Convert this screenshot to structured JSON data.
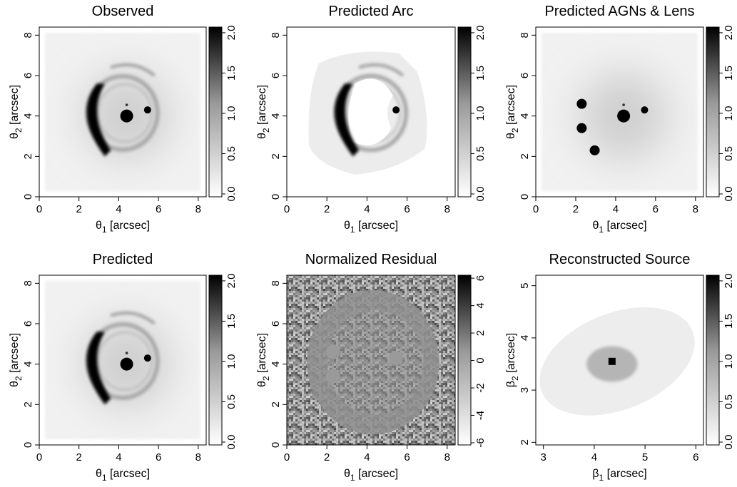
{
  "figure": {
    "colors": {
      "ink": "#000000",
      "background": "#ffffff"
    }
  },
  "chart_data": [
    {
      "type": "heatmap",
      "title": "Observed",
      "xlabel": "θ1 [arcsec]",
      "ylabel": "θ2 [arcsec]",
      "xlim": [
        0,
        8.4
      ],
      "ylim": [
        0,
        8.4
      ],
      "xticks": [
        "0",
        "2",
        "4",
        "6",
        "8"
      ],
      "yticks": [
        "0",
        "2",
        "4",
        "6",
        "8"
      ],
      "colorbar": {
        "range": [
          0,
          2.0
        ],
        "ticks": [
          "0.0",
          "0.5",
          "1.0",
          "1.5",
          "2.0"
        ]
      },
      "scene": "lensed-ring",
      "features": {
        "halo": true,
        "arc": 1.0,
        "ring": 0.45,
        "lens_center": [
          4.4,
          4.0
        ],
        "agns": [
          [
            5.45,
            4.3
          ]
        ],
        "mask": false
      }
    },
    {
      "type": "heatmap",
      "title": "Predicted Arc",
      "xlabel": "θ1 [arcsec]",
      "ylabel": "θ2 [arcsec]",
      "xlim": [
        0,
        8.4
      ],
      "ylim": [
        0,
        8.4
      ],
      "xticks": [
        "0",
        "2",
        "4",
        "6",
        "8"
      ],
      "yticks": [
        "0",
        "2",
        "4",
        "6",
        "8"
      ],
      "colorbar": {
        "range": [
          0,
          2.0
        ],
        "ticks": [
          "0.0",
          "0.5",
          "1.0",
          "1.5",
          "2.0"
        ]
      },
      "scene": "arc-model",
      "features": {
        "halo": false,
        "arc": 1.0,
        "ring": 0.5,
        "lens_center": null,
        "agns": [
          [
            5.45,
            4.3
          ]
        ],
        "mask": true
      }
    },
    {
      "type": "heatmap",
      "title": "Predicted AGNs & Lens",
      "xlabel": "θ1 [arcsec]",
      "ylabel": "θ2 [arcsec]",
      "xlim": [
        0,
        8.4
      ],
      "ylim": [
        0,
        8.4
      ],
      "xticks": [
        "0",
        "2",
        "4",
        "6",
        "8"
      ],
      "yticks": [
        "0",
        "2",
        "4",
        "6",
        "8"
      ],
      "colorbar": {
        "range": [
          0,
          2.0
        ],
        "ticks": [
          "0.0",
          "0.5",
          "1.0",
          "1.5",
          "2.0"
        ]
      },
      "scene": "agn-lens",
      "features": {
        "halo": true,
        "arc": 0,
        "ring": 0,
        "lens_center": [
          4.4,
          4.0
        ],
        "agns": [
          [
            2.3,
            4.6
          ],
          [
            2.3,
            3.4
          ],
          [
            2.95,
            2.3
          ],
          [
            5.45,
            4.3
          ]
        ],
        "mask": false
      }
    },
    {
      "type": "heatmap",
      "title": "Predicted",
      "xlabel": "θ1 [arcsec]",
      "ylabel": "θ2 [arcsec]",
      "xlim": [
        0,
        8.4
      ],
      "ylim": [
        0,
        8.4
      ],
      "xticks": [
        "0",
        "2",
        "4",
        "6",
        "8"
      ],
      "yticks": [
        "0",
        "2",
        "4",
        "6",
        "8"
      ],
      "colorbar": {
        "range": [
          0,
          2.0
        ],
        "ticks": [
          "0.0",
          "0.5",
          "1.0",
          "1.5",
          "2.0"
        ]
      },
      "scene": "lensed-ring",
      "features": {
        "halo": true,
        "arc": 1.0,
        "ring": 0.45,
        "lens_center": [
          4.4,
          4.0
        ],
        "agns": [
          [
            5.45,
            4.3
          ]
        ],
        "mask": false
      }
    },
    {
      "type": "heatmap",
      "title": "Normalized Residual",
      "xlabel": "θ1 [arcsec]",
      "ylabel": "θ2 [arcsec]",
      "xlim": [
        0,
        8.4
      ],
      "ylim": [
        0,
        8.4
      ],
      "xticks": [
        "0",
        "2",
        "4",
        "6",
        "8"
      ],
      "yticks": [
        "0",
        "2",
        "4",
        "6",
        "8"
      ],
      "colorbar": {
        "range": [
          -6,
          6
        ],
        "ticks": [
          "-6",
          "-4",
          "-2",
          "0",
          "2",
          "4",
          "6"
        ]
      },
      "scene": "residual",
      "features": {
        "masked_discs": [
          [
            2.3,
            4.6
          ],
          [
            2.3,
            3.4
          ],
          [
            5.45,
            4.3
          ]
        ]
      }
    },
    {
      "type": "heatmap",
      "title": "Reconstructed Source",
      "xlabel": "β1 [arcsec]",
      "ylabel": "β2 [arcsec]",
      "xlim": [
        2.85,
        6.15
      ],
      "ylim": [
        1.95,
        5.2
      ],
      "xticks": [
        "3",
        "4",
        "5",
        "6"
      ],
      "yticks": [
        "2",
        "3",
        "4",
        "5"
      ],
      "colorbar": {
        "range": [
          0,
          2.0
        ],
        "ticks": [
          "0.0",
          "0.5",
          "1.0",
          "1.5",
          "2.0"
        ]
      },
      "scene": "source",
      "features": {
        "peak": [
          4.35,
          3.55
        ]
      }
    }
  ]
}
